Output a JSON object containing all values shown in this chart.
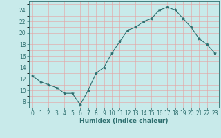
{
  "x": [
    0,
    1,
    2,
    3,
    4,
    5,
    6,
    7,
    8,
    9,
    10,
    11,
    12,
    13,
    14,
    15,
    16,
    17,
    18,
    19,
    20,
    21,
    22,
    23
  ],
  "y": [
    12.5,
    11.5,
    11.0,
    10.5,
    9.5,
    9.5,
    7.5,
    10.0,
    13.0,
    14.0,
    16.5,
    18.5,
    20.5,
    21.0,
    22.0,
    22.5,
    24.0,
    24.5,
    24.0,
    22.5,
    21.0,
    19.0,
    18.0,
    16.5
  ],
  "line_color": "#2d6e6e",
  "marker": "*",
  "marker_size": 3,
  "bg_color": "#c8eaea",
  "grid_color": "#e8a0a0",
  "xlabel": "Humidex (Indice chaleur)",
  "xlim": [
    -0.5,
    23.5
  ],
  "ylim": [
    7,
    25.5
  ],
  "yticks": [
    8,
    10,
    12,
    14,
    16,
    18,
    20,
    22,
    24
  ],
  "xticks": [
    0,
    1,
    2,
    3,
    4,
    5,
    6,
    7,
    8,
    9,
    10,
    11,
    12,
    13,
    14,
    15,
    16,
    17,
    18,
    19,
    20,
    21,
    22,
    23
  ],
  "xlabel_fontsize": 6.5,
  "tick_fontsize": 5.5
}
